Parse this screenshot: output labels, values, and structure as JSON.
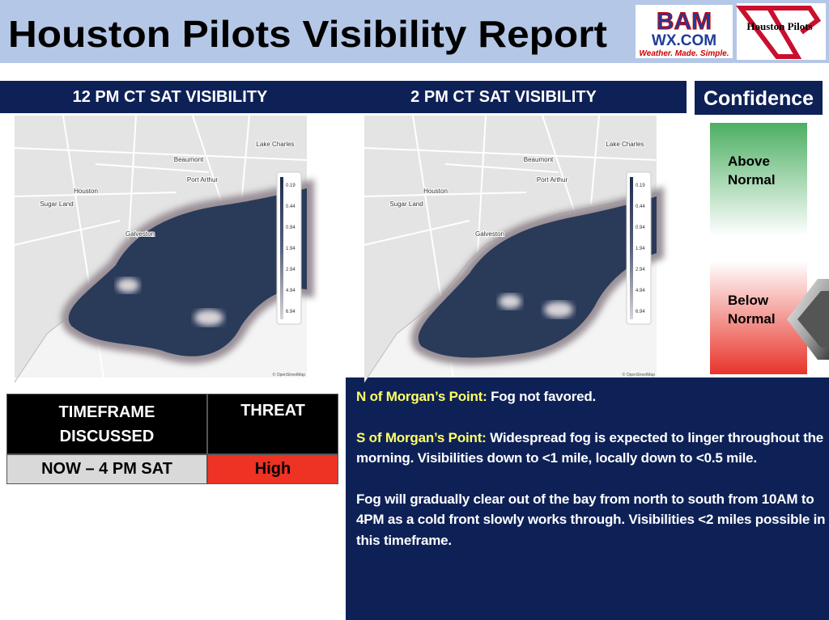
{
  "header": {
    "title": "Houston Pilots Visibility Report",
    "logo_bam": "BAM",
    "logo_wx": "WX.COM",
    "logo_tagline": "Weather. Made. Simple.",
    "logo_pilots": "Houston Pilots"
  },
  "maps": [
    {
      "title": "12 PM CT SAT VISIBILITY",
      "places": [
        "Lake Charles",
        "Beaumont",
        "Port Arthur",
        "Houston",
        "Sugar Land",
        "Galveston"
      ],
      "legend": [
        "0.19",
        "0.44",
        "0.94",
        "1.94",
        "2.94",
        "4.94",
        "6.94"
      ],
      "credit": "© OpenStreetMap"
    },
    {
      "title": "2 PM CT SAT VISIBILITY",
      "places": [
        "Lake Charles",
        "Beaumont",
        "Port Arthur",
        "Houston",
        "Sugar Land",
        "Galveston"
      ],
      "legend": [
        "0.19",
        "0.44",
        "0.94",
        "1.94",
        "2.94",
        "4.94",
        "6.94"
      ],
      "credit": "© OpenStreetMap"
    }
  ],
  "confidence": {
    "title": "Confidence",
    "high": "Above Normal",
    "low": "Below Normal"
  },
  "table": {
    "headers": [
      "TIMEFRAME DISCUSSED",
      "THREAT"
    ],
    "rows": [
      [
        "NOW – 4 PM SAT",
        "High"
      ]
    ]
  },
  "notes": [
    {
      "label": "N of Morgan’s Point:",
      "text": "Fog not favored."
    },
    {
      "label": "S of Morgan’s Point:",
      "text": "Widespread fog is expected to linger throughout the morning. Visibilities down to <1 mile, locally down to <0.5 mile."
    },
    {
      "text": "Fog will gradually clear out of the bay from north to south from 10AM to 4PM as a cold front slowly works through. Visibilities <2 miles possible in this timeframe."
    }
  ]
}
